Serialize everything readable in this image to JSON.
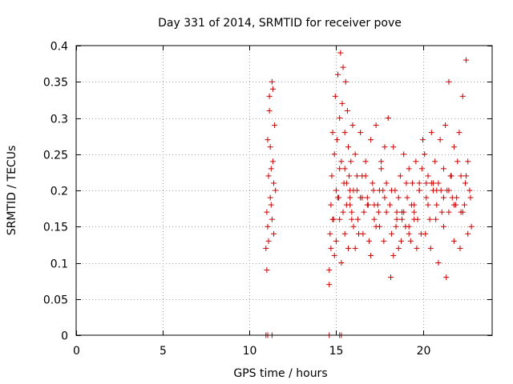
{
  "chart_data": {
    "type": "scatter",
    "title": "Day 331 of 2014, SRMTID for receiver pove",
    "xlabel": "GPS time / hours",
    "ylabel": "SRMTID / TECUs",
    "xlim": [
      0,
      24
    ],
    "ylim": [
      0,
      0.4
    ],
    "xticks": [
      0,
      5,
      10,
      15,
      20
    ],
    "yticks": [
      0,
      0.05,
      0.1,
      0.15,
      0.2,
      0.25,
      0.3,
      0.35,
      0.4
    ],
    "xtick_labels": [
      "0",
      "5",
      "10",
      "15",
      "20"
    ],
    "ytick_labels": [
      "0",
      "0.05",
      "0.1",
      "0.15",
      "0.2",
      "0.25",
      "0.3",
      "0.35",
      "0.4"
    ],
    "grid": true,
    "marker": "+",
    "color": "#cc0000",
    "series": [
      {
        "name": "SRMTID",
        "x": [
          10.95,
          11.0,
          11.05,
          11.1,
          11.15,
          11.2,
          11.25,
          11.3,
          11.35,
          11.4,
          11.45,
          11.5,
          11.0,
          11.05,
          11.1,
          11.15,
          11.2,
          11.25,
          11.3,
          11.35,
          11.4,
          14.6,
          14.65,
          14.7,
          14.75,
          14.8,
          14.85,
          14.9,
          14.95,
          15.0,
          15.05,
          15.1,
          15.15,
          15.2,
          15.25,
          15.3,
          15.35,
          15.4,
          15.45,
          15.5,
          15.55,
          15.6,
          15.65,
          15.7,
          15.75,
          15.8,
          15.85,
          15.9,
          15.95,
          16.0,
          14.6,
          14.7,
          14.8,
          14.9,
          15.0,
          15.1,
          15.2,
          15.3,
          15.4,
          15.5,
          15.6,
          15.7,
          15.8,
          15.9,
          16.0,
          16.1,
          16.2,
          16.3,
          16.4,
          16.5,
          16.6,
          16.7,
          16.8,
          16.9,
          17.0,
          17.1,
          17.2,
          17.3,
          17.4,
          17.5,
          17.6,
          17.7,
          17.8,
          17.9,
          18.0,
          16.1,
          16.25,
          16.4,
          16.55,
          16.7,
          16.85,
          17.0,
          17.15,
          17.3,
          17.45,
          17.6,
          17.75,
          17.9,
          18.1,
          18.2,
          18.3,
          18.4,
          18.5,
          18.6,
          18.7,
          18.8,
          18.9,
          19.0,
          19.1,
          19.2,
          19.3,
          19.4,
          19.5,
          19.6,
          19.7,
          19.8,
          19.9,
          20.0,
          18.15,
          18.3,
          18.45,
          18.6,
          18.75,
          18.9,
          19.05,
          19.2,
          19.35,
          19.5,
          19.65,
          19.8,
          19.95,
          20.1,
          20.2,
          20.3,
          20.4,
          20.5,
          20.6,
          20.7,
          20.8,
          20.9,
          21.0,
          21.1,
          21.2,
          21.3,
          21.4,
          21.5,
          21.6,
          21.7,
          21.8,
          21.9,
          22.0,
          20.15,
          20.3,
          20.45,
          20.6,
          20.75,
          20.9,
          21.05,
          21.2,
          21.35,
          21.5,
          21.65,
          21.8,
          21.95,
          22.1,
          22.2,
          22.3,
          22.4,
          22.5,
          22.6,
          22.7,
          22.8,
          22.15,
          22.3,
          22.45,
          22.6,
          22.75,
          15.5,
          16.5,
          17.5,
          18.5,
          19.5,
          20.5,
          21.5,
          22.5,
          15.2,
          16.2,
          17.2,
          18.2,
          19.2,
          20.2,
          21.2,
          22.2,
          15.8,
          16.8,
          17.8,
          18.8,
          19.8,
          20.8,
          21.8,
          10.95,
          11.05,
          11.3,
          14.6,
          15.2,
          15.3
        ],
        "y": [
          0.12,
          0.09,
          0.15,
          0.22,
          0.33,
          0.26,
          0.18,
          0.35,
          0.24,
          0.14,
          0.29,
          0.2,
          0.17,
          0.27,
          0.13,
          0.31,
          0.19,
          0.23,
          0.16,
          0.34,
          0.21,
          0.09,
          0.14,
          0.18,
          0.22,
          0.28,
          0.16,
          0.25,
          0.33,
          0.2,
          0.27,
          0.36,
          0.19,
          0.3,
          0.39,
          0.24,
          0.32,
          0.37,
          0.21,
          0.28,
          0.35,
          0.18,
          0.31,
          0.26,
          0.22,
          0.19,
          0.24,
          0.17,
          0.29,
          0.15,
          0.07,
          0.12,
          0.16,
          0.11,
          0.13,
          0.19,
          0.23,
          0.1,
          0.17,
          0.14,
          0.21,
          0.12,
          0.18,
          0.16,
          0.2,
          0.25,
          0.2,
          0.14,
          0.28,
          0.22,
          0.17,
          0.24,
          0.19,
          0.13,
          0.27,
          0.21,
          0.16,
          0.29,
          0.18,
          0.15,
          0.23,
          0.2,
          0.26,
          0.17,
          0.3,
          0.12,
          0.16,
          0.19,
          0.14,
          0.22,
          0.18,
          0.11,
          0.2,
          0.15,
          0.17,
          0.24,
          0.13,
          0.21,
          0.18,
          0.14,
          0.26,
          0.2,
          0.16,
          0.12,
          0.22,
          0.17,
          0.25,
          0.15,
          0.19,
          0.23,
          0.13,
          0.21,
          0.17,
          0.24,
          0.16,
          0.2,
          0.14,
          0.27,
          0.08,
          0.11,
          0.15,
          0.19,
          0.13,
          0.17,
          0.21,
          0.14,
          0.18,
          0.16,
          0.12,
          0.2,
          0.23,
          0.25,
          0.19,
          0.22,
          0.16,
          0.28,
          0.2,
          0.24,
          0.18,
          0.21,
          0.27,
          0.17,
          0.23,
          0.29,
          0.2,
          0.35,
          0.22,
          0.19,
          0.26,
          0.18,
          0.24,
          0.14,
          0.18,
          0.12,
          0.21,
          0.16,
          0.1,
          0.2,
          0.15,
          0.08,
          0.17,
          0.22,
          0.13,
          0.19,
          0.28,
          0.22,
          0.33,
          0.18,
          0.38,
          0.24,
          0.2,
          0.15,
          0.12,
          0.17,
          0.21,
          0.14,
          0.19,
          0.23,
          0.19,
          0.2,
          0.17,
          0.18,
          0.21,
          0.2,
          0.22,
          0.16,
          0.22,
          0.18,
          0.2,
          0.15,
          0.21,
          0.19,
          0.17,
          0.2,
          0.18,
          0.19,
          0.16,
          0.21,
          0.2,
          0.18,
          0,
          0,
          0,
          0,
          0,
          0
        ]
      }
    ]
  }
}
